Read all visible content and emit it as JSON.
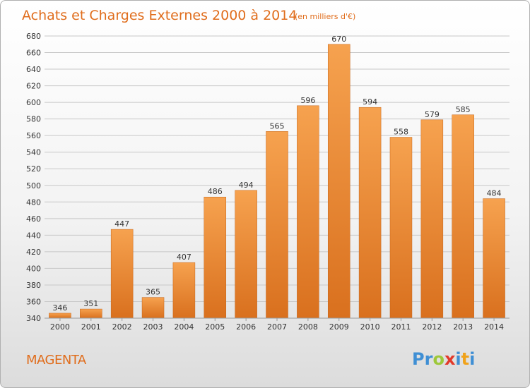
{
  "colors": {
    "accent": "#e06d1c",
    "bar_light": "#f6a24f",
    "bar_dark": "#d9701e",
    "grid": "#c8c8c8"
  },
  "place": "MAGENTA",
  "brand": {
    "letters": [
      {
        "ch": "P",
        "color": "#3f8fd4"
      },
      {
        "ch": "r",
        "color": "#3f8fd4"
      },
      {
        "ch": "o",
        "color": "#9dc83a"
      },
      {
        "ch": "x",
        "color": "#e23a2a"
      },
      {
        "ch": "i",
        "color": "#3f8fd4"
      },
      {
        "ch": "t",
        "color": "#f0a21a"
      },
      {
        "ch": "i",
        "color": "#3f8fd4"
      }
    ]
  },
  "chart_data": {
    "type": "bar",
    "title": "Achats et Charges Externes 2000 à 2014",
    "subtitle": "(en milliers d'€)",
    "categories": [
      "2000",
      "2001",
      "2002",
      "2003",
      "2004",
      "2005",
      "2006",
      "2007",
      "2008",
      "2009",
      "2010",
      "2011",
      "2012",
      "2013",
      "2014"
    ],
    "values": [
      346,
      351,
      447,
      365,
      407,
      486,
      494,
      565,
      596,
      670,
      594,
      558,
      579,
      585,
      484
    ],
    "data_labels": [
      "346",
      "351",
      "447",
      "365",
      "407",
      "486",
      "494",
      "565",
      "596",
      "670",
      "594",
      "558",
      "579",
      "585",
      "484"
    ],
    "ylim": [
      340,
      680
    ],
    "yticks": [
      340,
      360,
      380,
      400,
      420,
      440,
      460,
      480,
      500,
      520,
      540,
      560,
      580,
      600,
      620,
      640,
      660,
      680
    ],
    "ytick_labels": [
      "340",
      "360",
      "380",
      "400",
      "420",
      "440",
      "460",
      "480",
      "500",
      "520",
      "540",
      "560",
      "580",
      "600",
      "620",
      "640",
      "660",
      "680"
    ],
    "grid": true,
    "legend": "none"
  }
}
